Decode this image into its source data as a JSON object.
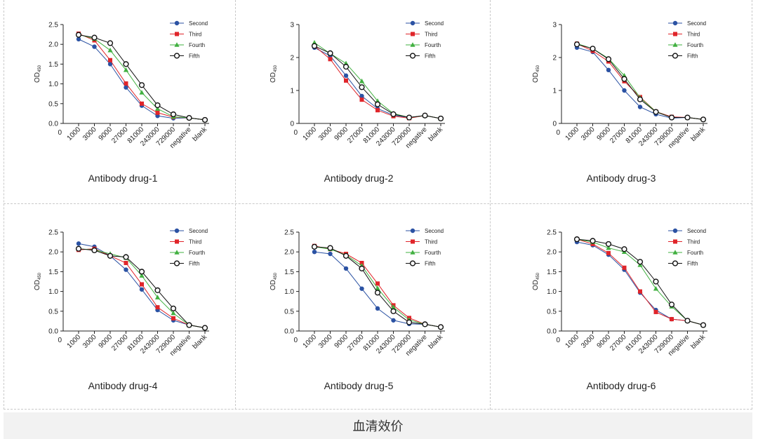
{
  "footer": {
    "caption": "血清效价"
  },
  "colors": {
    "Second": "#2b52a3",
    "Third": "#e0252a",
    "Fourth": "#41b040",
    "Fifth": "#111111"
  },
  "chart_data": [
    {
      "type": "line",
      "title": "Antibody drug-1",
      "ylabel": "OD450",
      "categories": [
        "1000",
        "3000",
        "9000",
        "27000",
        "81000",
        "243000",
        "729000",
        "negative",
        "blank"
      ],
      "ylim": [
        0,
        2.5
      ],
      "yticks": [
        "0.0",
        "0.5",
        "1.0",
        "1.5",
        "2.0",
        "2.5"
      ],
      "legend": "top-right",
      "series": [
        {
          "name": "Second",
          "values": [
            2.13,
            1.94,
            1.5,
            0.91,
            0.45,
            0.19,
            0.13,
            0.14,
            0.09
          ]
        },
        {
          "name": "Third",
          "values": [
            2.27,
            2.1,
            1.6,
            1.01,
            0.5,
            0.27,
            0.16,
            0.14,
            0.09
          ]
        },
        {
          "name": "Fourth",
          "values": [
            2.25,
            2.14,
            1.85,
            1.35,
            0.78,
            0.37,
            0.17,
            0.14,
            0.09
          ]
        },
        {
          "name": "Fifth",
          "values": [
            2.24,
            2.17,
            2.03,
            1.5,
            0.97,
            0.46,
            0.23,
            0.14,
            0.09
          ]
        }
      ]
    },
    {
      "type": "line",
      "title": "Antibody drug-2",
      "ylabel": "OD450",
      "categories": [
        "1000",
        "3000",
        "9000",
        "27000",
        "81000",
        "243000",
        "729000",
        "negative",
        "blank"
      ],
      "ylim": [
        0,
        3
      ],
      "yticks": [
        "0",
        "1",
        "2",
        "3"
      ],
      "legend": "top-right",
      "series": [
        {
          "name": "Second",
          "values": [
            2.3,
            2.05,
            1.45,
            0.83,
            0.45,
            0.25,
            0.18,
            0.24,
            0.15
          ]
        },
        {
          "name": "Third",
          "values": [
            2.35,
            1.95,
            1.3,
            0.72,
            0.4,
            0.22,
            0.16,
            0.24,
            0.15
          ]
        },
        {
          "name": "Fourth",
          "values": [
            2.45,
            2.12,
            1.82,
            1.28,
            0.68,
            0.3,
            0.18,
            0.24,
            0.15
          ]
        },
        {
          "name": "Fifth",
          "values": [
            2.35,
            2.13,
            1.72,
            1.1,
            0.58,
            0.28,
            0.18,
            0.24,
            0.15
          ]
        }
      ]
    },
    {
      "type": "line",
      "title": "Antibody drug-3",
      "ylabel": "OD450",
      "categories": [
        "1000",
        "3000",
        "9000",
        "27000",
        "81000",
        "243000",
        "729000",
        "negative",
        "blank"
      ],
      "ylim": [
        0,
        3
      ],
      "yticks": [
        "0",
        "1",
        "2",
        "3"
      ],
      "legend": "top-right",
      "series": [
        {
          "name": "Second",
          "values": [
            2.3,
            2.17,
            1.62,
            1.0,
            0.5,
            0.28,
            0.16,
            0.18,
            0.12
          ]
        },
        {
          "name": "Third",
          "values": [
            2.42,
            2.2,
            1.88,
            1.28,
            0.8,
            0.36,
            0.2,
            0.18,
            0.12
          ]
        },
        {
          "name": "Fourth",
          "values": [
            2.42,
            2.27,
            1.97,
            1.45,
            0.78,
            0.36,
            0.18,
            0.18,
            0.12
          ]
        },
        {
          "name": "Fifth",
          "values": [
            2.4,
            2.27,
            1.95,
            1.35,
            0.73,
            0.35,
            0.18,
            0.18,
            0.12
          ]
        }
      ]
    },
    {
      "type": "line",
      "title": "Antibody drug-4",
      "ylabel": "OD450",
      "categories": [
        "1000",
        "3000",
        "9000",
        "27000",
        "81000",
        "243000",
        "729000",
        "negative",
        "blank"
      ],
      "ylim": [
        0,
        2.5
      ],
      "yticks": [
        "0.0",
        "0.5",
        "1.0",
        "1.5",
        "2.0",
        "2.5"
      ],
      "legend": "top-right",
      "series": [
        {
          "name": "Second",
          "values": [
            2.21,
            2.13,
            1.9,
            1.55,
            1.05,
            0.53,
            0.27,
            0.15,
            0.08
          ]
        },
        {
          "name": "Third",
          "values": [
            2.05,
            2.08,
            1.9,
            1.72,
            1.18,
            0.6,
            0.32,
            0.15,
            0.08
          ]
        },
        {
          "name": "Fourth",
          "values": [
            2.08,
            2.05,
            1.95,
            1.85,
            1.4,
            0.85,
            0.45,
            0.15,
            0.08
          ]
        },
        {
          "name": "Fifth",
          "values": [
            2.08,
            2.04,
            1.9,
            1.87,
            1.5,
            1.03,
            0.57,
            0.15,
            0.08
          ]
        }
      ]
    },
    {
      "type": "line",
      "title": "Antibody drug-5",
      "ylabel": "OD450",
      "categories": [
        "1000",
        "3000",
        "9000",
        "27000",
        "81000",
        "243000",
        "729000",
        "negative",
        "blank"
      ],
      "ylim": [
        0,
        2.5
      ],
      "yticks": [
        "0.0",
        "0.5",
        "1.0",
        "1.5",
        "2.0",
        "2.5"
      ],
      "legend": "top-right",
      "series": [
        {
          "name": "Second",
          "values": [
            2.0,
            1.95,
            1.58,
            1.07,
            0.57,
            0.27,
            0.18,
            0.17,
            0.1
          ]
        },
        {
          "name": "Third",
          "values": [
            2.15,
            2.07,
            1.95,
            1.72,
            1.2,
            0.65,
            0.33,
            0.17,
            0.1
          ]
        },
        {
          "name": "Fourth",
          "values": [
            2.13,
            2.07,
            1.92,
            1.65,
            1.08,
            0.6,
            0.28,
            0.17,
            0.1
          ]
        },
        {
          "name": "Fifth",
          "values": [
            2.13,
            2.1,
            1.9,
            1.58,
            0.97,
            0.5,
            0.22,
            0.17,
            0.1
          ]
        }
      ]
    },
    {
      "type": "line",
      "title": "Antibody drug-6",
      "ylabel": "OD450",
      "categories": [
        "1000",
        "3000",
        "9000",
        "27000",
        "81000",
        "243000",
        "729000",
        "negative",
        "blank"
      ],
      "ylim": [
        0,
        2.5
      ],
      "yticks": [
        "0.0",
        "0.5",
        "1.0",
        "1.5",
        "2.0",
        "2.5"
      ],
      "legend": "top-right",
      "series": [
        {
          "name": "Second",
          "values": [
            2.25,
            2.17,
            1.93,
            1.55,
            0.97,
            0.53,
            0.3,
            0.26,
            0.15
          ]
        },
        {
          "name": "Third",
          "values": [
            2.32,
            2.2,
            1.97,
            1.6,
            1.0,
            0.48,
            0.3,
            0.26,
            0.15
          ]
        },
        {
          "name": "Fourth",
          "values": [
            2.32,
            2.25,
            2.1,
            2.0,
            1.67,
            1.07,
            0.62,
            0.26,
            0.15
          ]
        },
        {
          "name": "Fifth",
          "values": [
            2.32,
            2.28,
            2.2,
            2.07,
            1.75,
            1.25,
            0.67,
            0.26,
            0.15
          ]
        }
      ]
    }
  ]
}
